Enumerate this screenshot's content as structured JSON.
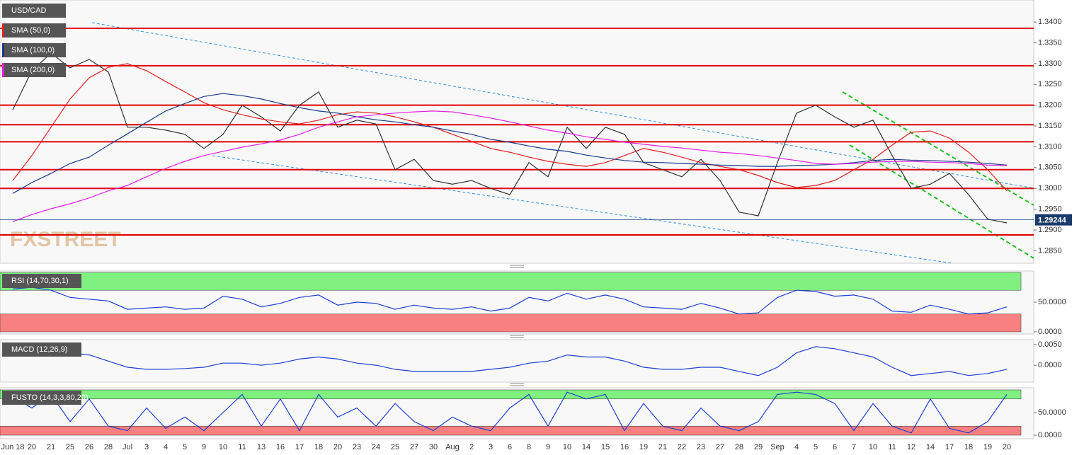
{
  "chart_data": [
    {
      "type": "line",
      "categories": [
        "Jun 18",
        "20",
        "21",
        "25",
        "26",
        "28",
        "Jul",
        "3",
        "4",
        "5",
        "9",
        "10",
        "11",
        "13",
        "16",
        "17",
        "18",
        "20",
        "23",
        "24",
        "25",
        "27",
        "30",
        "Aug",
        "2",
        "3",
        "6",
        "8",
        "9",
        "10",
        "14",
        "15",
        "16",
        "19",
        "21",
        "22",
        "23",
        "27",
        "28",
        "29",
        "Sep",
        "4",
        "5",
        "6",
        "7",
        "10",
        "11",
        "12",
        "14",
        "17",
        "18",
        "19",
        "20"
      ],
      "series": [
        {
          "name": "USD/CAD",
          "color": "#333333",
          "values": [
            1.3189,
            1.3283,
            1.3325,
            1.329,
            1.331,
            1.328,
            1.3147,
            1.3147,
            1.314,
            1.313,
            1.3096,
            1.313,
            1.32,
            1.3172,
            1.3138,
            1.32,
            1.3232,
            1.3147,
            1.3164,
            1.3155,
            1.3045,
            1.307,
            1.3019,
            1.301,
            1.3019,
            1.3,
            1.2985,
            1.3062,
            1.3028,
            1.3147,
            1.3096,
            1.3147,
            1.313,
            1.3062,
            1.3045,
            1.3028,
            1.307,
            1.3019,
            1.2943,
            1.2934,
            1.3062,
            1.3181,
            1.32,
            1.3172,
            1.3147,
            1.3164,
            1.3079,
            1.3,
            1.301,
            1.3036,
            1.2985,
            1.2926,
            1.2917
          ]
        },
        {
          "name": "SMA (50,0)",
          "color": "#e02020",
          "values": [
            1.3019,
            1.3079,
            1.3147,
            1.3215,
            1.3266,
            1.3291,
            1.33,
            1.3283,
            1.3257,
            1.3232,
            1.3206,
            1.3189,
            1.3177,
            1.3167,
            1.316,
            1.3155,
            1.3164,
            1.3177,
            1.3184,
            1.3181,
            1.3172,
            1.316,
            1.3147,
            1.313,
            1.3113,
            1.3096,
            1.3087,
            1.3075,
            1.3065,
            1.3058,
            1.3053,
            1.3062,
            1.3079,
            1.3096,
            1.3087,
            1.3075,
            1.3062,
            1.3053,
            1.3045,
            1.3031,
            1.3014,
            1.3002,
            1.3007,
            1.3019,
            1.3045,
            1.307,
            1.3104,
            1.3135,
            1.3138,
            1.3121,
            1.3087,
            1.3045,
            1.2994
          ]
        },
        {
          "name": "SMA (100,0)",
          "color": "#1a3a8a",
          "values": [
            1.2988,
            1.3014,
            1.3036,
            1.306,
            1.3075,
            1.3104,
            1.3131,
            1.3159,
            1.3186,
            1.3204,
            1.3221,
            1.3228,
            1.3223,
            1.3215,
            1.3204,
            1.3194,
            1.3186,
            1.3181,
            1.3172,
            1.3165,
            1.316,
            1.3153,
            1.3147,
            1.3138,
            1.313,
            1.3118,
            1.3111,
            1.3102,
            1.3094,
            1.3089,
            1.308,
            1.3073,
            1.3067,
            1.3063,
            1.3062,
            1.306,
            1.3058,
            1.3056,
            1.3055,
            1.3053,
            1.3053,
            1.3055,
            1.3056,
            1.3058,
            1.3062,
            1.3067,
            1.307,
            1.3068,
            1.3067,
            1.3065,
            1.3063,
            1.306,
            1.3056
          ]
        },
        {
          "name": "SMA (200,0)",
          "color": "#e020e0",
          "values": [
            1.292,
            1.2937,
            1.2951,
            1.2963,
            1.2977,
            1.2994,
            1.3007,
            1.3028,
            1.3048,
            1.3065,
            1.3079,
            1.3089,
            1.3099,
            1.3107,
            1.3116,
            1.313,
            1.3147,
            1.316,
            1.3172,
            1.3177,
            1.3181,
            1.3184,
            1.3186,
            1.3184,
            1.3177,
            1.3169,
            1.316,
            1.315,
            1.314,
            1.3133,
            1.3124,
            1.3118,
            1.3111,
            1.3106,
            1.3101,
            1.3097,
            1.3092,
            1.3087,
            1.3084,
            1.3079,
            1.3073,
            1.3067,
            1.306,
            1.3058,
            1.306,
            1.3063,
            1.3065,
            1.3065,
            1.3063,
            1.3062,
            1.306,
            1.3056,
            1.3055
          ]
        }
      ],
      "levels": [
        1.3385,
        1.3295,
        1.32,
        1.3153,
        1.3112,
        1.3045,
        1.3,
        1.2888
      ],
      "level_color": "#e00000",
      "last_price": 1.29244,
      "ylim": [
        1.282,
        1.3453
      ],
      "yticks": [
        {
          "value": 1.34,
          "label": "1.3400"
        },
        {
          "value": 1.335,
          "label": "1.3350"
        },
        {
          "value": 1.33,
          "label": "1.3300"
        },
        {
          "value": 1.325,
          "label": "1.3250"
        },
        {
          "value": 1.32,
          "label": "1.3200"
        },
        {
          "value": 1.315,
          "label": "1.3150"
        },
        {
          "value": 1.31,
          "label": "1.3100"
        },
        {
          "value": 1.305,
          "label": "1.3050"
        },
        {
          "value": 1.3,
          "label": "1.3000"
        },
        {
          "value": 1.295,
          "label": "1.2950"
        },
        {
          "value": 1.29,
          "label": "1.2900"
        },
        {
          "value": 1.285,
          "label": "1.2850"
        }
      ],
      "watermark": "FXSTREET"
    },
    {
      "type": "line",
      "title": "RSI (14,70,30,1)",
      "zones": [
        [
          70,
          100
        ],
        [
          0,
          30
        ]
      ],
      "zone_colors": [
        "#80f080",
        "#f88080"
      ],
      "series": [
        {
          "color": "#2040d0",
          "values": [
            72,
            75,
            70,
            58,
            55,
            52,
            38,
            40,
            42,
            38,
            40,
            60,
            55,
            42,
            48,
            58,
            62,
            45,
            50,
            48,
            38,
            45,
            40,
            38,
            42,
            35,
            40,
            58,
            52,
            65,
            55,
            62,
            55,
            42,
            40,
            38,
            48,
            40,
            30,
            32,
            58,
            70,
            68,
            60,
            62,
            55,
            35,
            33,
            45,
            38,
            30,
            32,
            42
          ]
        }
      ],
      "ylim": [
        -3.6,
        102.4
      ],
      "yticks": [
        {
          "value": 50,
          "label": "50.0000"
        },
        {
          "value": 0,
          "label": "0.0000"
        }
      ]
    },
    {
      "type": "line",
      "title": "MACD (12,26,9)",
      "series": [
        {
          "color": "#2040d0",
          "values": [
            0.0035,
            0.004,
            0.004,
            0.003,
            0.0025,
            0.001,
            -0.0005,
            -0.001,
            -0.001,
            -0.0008,
            -0.0005,
            0.0005,
            0.0005,
            0,
            0.0005,
            0.0015,
            0.002,
            0.0015,
            0.0005,
            0,
            -0.001,
            -0.0015,
            -0.0015,
            -0.0015,
            -0.0015,
            -0.001,
            -0.0005,
            0.0005,
            0.001,
            0.0025,
            0.002,
            0.002,
            0.001,
            -0.0005,
            -0.001,
            -0.001,
            -0.0005,
            -0.0005,
            -0.0015,
            -0.0025,
            -0.0005,
            0.003,
            0.0045,
            0.004,
            0.003,
            0.002,
            -0.0005,
            -0.0025,
            -0.002,
            -0.0015,
            -0.0025,
            -0.002,
            -0.001
          ]
        }
      ],
      "ylim": [
        -0.0041,
        0.0062
      ],
      "yticks": [
        {
          "value": 0.005,
          "label": "0.0050"
        },
        {
          "value": 0,
          "label": "0.0000"
        }
      ]
    },
    {
      "type": "line",
      "title": "FUSTO (14,3,3,80,20)",
      "zones": [
        [
          80,
          100
        ],
        [
          0,
          20
        ]
      ],
      "zone_colors": [
        "#80f080",
        "#f88080"
      ],
      "series": [
        {
          "color": "#2040d0",
          "values": [
            85,
            60,
            90,
            30,
            80,
            20,
            10,
            60,
            15,
            40,
            10,
            50,
            90,
            20,
            80,
            10,
            90,
            40,
            60,
            20,
            70,
            30,
            10,
            40,
            20,
            10,
            60,
            90,
            20,
            95,
            80,
            90,
            10,
            70,
            20,
            10,
            60,
            20,
            10,
            30,
            90,
            95,
            90,
            70,
            10,
            70,
            20,
            5,
            80,
            15,
            5,
            30,
            90
          ]
        }
      ],
      "ylim": [
        -7.8,
        104.7
      ],
      "yticks": [
        {
          "value": 50,
          "label": "50.0000"
        },
        {
          "value": 0,
          "label": "0.0000"
        }
      ]
    }
  ]
}
